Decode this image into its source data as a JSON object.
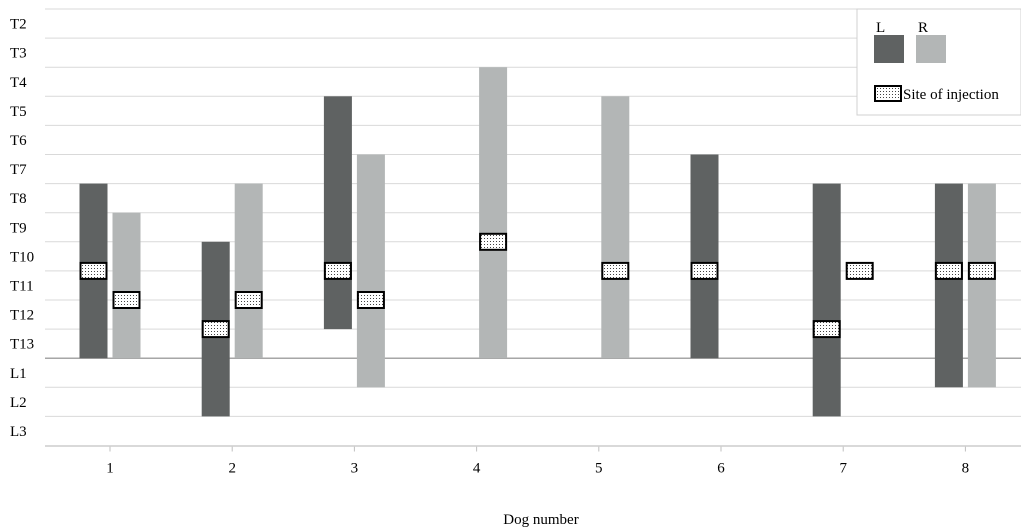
{
  "chart_data": {
    "type": "bar",
    "title": "",
    "xlabel": "Dog number",
    "ylabel": "",
    "y_categories": [
      "T2",
      "T3",
      "T4",
      "T5",
      "T6",
      "T7",
      "T8",
      "T9",
      "T10",
      "T11",
      "T12",
      "T13",
      "L1",
      "L2",
      "L3"
    ],
    "categories": [
      "1",
      "2",
      "3",
      "4",
      "5",
      "6",
      "7",
      "8"
    ],
    "series": [
      {
        "name": "L",
        "color": "#5f6262",
        "ranges": [
          {
            "dog": "1",
            "from": "T8",
            "to": "T13"
          },
          {
            "dog": "2",
            "from": "T10",
            "to": "L2"
          },
          {
            "dog": "3",
            "from": "T5",
            "to": "T12"
          },
          {
            "dog": "4",
            "from": null,
            "to": null
          },
          {
            "dog": "5",
            "from": null,
            "to": null
          },
          {
            "dog": "6",
            "from": "T7",
            "to": "T13"
          },
          {
            "dog": "7",
            "from": "T8",
            "to": "L2"
          },
          {
            "dog": "8",
            "from": "T8",
            "to": "L1"
          }
        ]
      },
      {
        "name": "R",
        "color": "#b3b6b6",
        "ranges": [
          {
            "dog": "1",
            "from": "T9",
            "to": "T13"
          },
          {
            "dog": "2",
            "from": "T8",
            "to": "T13"
          },
          {
            "dog": "3",
            "from": "T7",
            "to": "L1"
          },
          {
            "dog": "4",
            "from": "T4",
            "to": "T13"
          },
          {
            "dog": "5",
            "from": "T5",
            "to": "T13"
          },
          {
            "dog": "6",
            "from": null,
            "to": null
          },
          {
            "dog": "7",
            "from": null,
            "to": null
          },
          {
            "dog": "8",
            "from": "T8",
            "to": "L1"
          }
        ]
      }
    ],
    "injection_sites": [
      {
        "dog": "1",
        "side": "L",
        "level": "T10/T11"
      },
      {
        "dog": "1",
        "side": "R",
        "level": "T11/T12"
      },
      {
        "dog": "2",
        "side": "L",
        "level": "T12/T13"
      },
      {
        "dog": "2",
        "side": "R",
        "level": "T11/T12"
      },
      {
        "dog": "3",
        "side": "L",
        "level": "T10/T11"
      },
      {
        "dog": "3",
        "side": "R",
        "level": "T11/T12"
      },
      {
        "dog": "4",
        "side": "R",
        "level": "T9/T10"
      },
      {
        "dog": "5",
        "side": "R",
        "level": "T10/T11"
      },
      {
        "dog": "6",
        "side": "L",
        "level": "T10/T11"
      },
      {
        "dog": "7",
        "side": "L",
        "level": "T12/T13"
      },
      {
        "dog": "7",
        "side": "R",
        "level": "T10/T11"
      },
      {
        "dog": "8",
        "side": "L",
        "level": "T10/T11"
      },
      {
        "dog": "8",
        "side": "R",
        "level": "T10/T11"
      }
    ],
    "legend": {
      "position": "top-right",
      "entries": [
        "L",
        "R",
        "Site of injection"
      ]
    },
    "grid": true
  }
}
